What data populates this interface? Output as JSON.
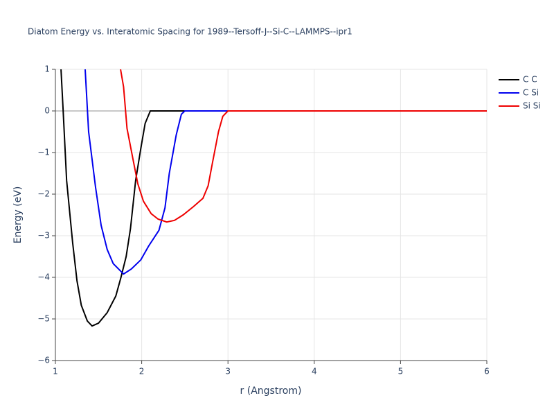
{
  "chart_data": {
    "type": "line",
    "title": "Diatom Energy vs. Interatomic Spacing for 1989--Tersoff-J--Si-C--LAMMPS--ipr1",
    "x_label": "r (Angstrom)",
    "y_label": "Energy (eV)",
    "xlim": [
      1,
      6
    ],
    "xticks": [
      1,
      2,
      3,
      4,
      5,
      6
    ],
    "ylim": [
      -6,
      1
    ],
    "yticks": [
      {
        "value": 1,
        "label": "1"
      },
      {
        "value": 0,
        "label": "0"
      },
      {
        "value": -1,
        "label": "−1"
      },
      {
        "value": -2,
        "label": "−2"
      },
      {
        "value": -3,
        "label": "−3"
      },
      {
        "value": -4,
        "label": "−4"
      },
      {
        "value": -5,
        "label": "−5"
      },
      {
        "value": -6,
        "label": "−6"
      }
    ],
    "grid": true,
    "legend": "right",
    "series": [
      {
        "name": "C C",
        "color": "#000000",
        "x": [
          1.065,
          1.09,
          1.13,
          1.2,
          1.25,
          1.3,
          1.37,
          1.425,
          1.5,
          1.6,
          1.7,
          1.76,
          1.82,
          1.87,
          1.93,
          1.99,
          2.04,
          2.1,
          6
        ],
        "values": [
          1,
          0,
          -1.67,
          -3.17,
          -4.08,
          -4.67,
          -5.05,
          -5.17,
          -5.1,
          -4.85,
          -4.45,
          -4.0,
          -3.5,
          -2.83,
          -1.67,
          -0.9,
          -0.3,
          0,
          0
        ]
      },
      {
        "name": "C Si",
        "color": "#0000ee",
        "x": [
          1.345,
          1.385,
          1.465,
          1.53,
          1.6,
          1.67,
          1.79,
          1.88,
          1.99,
          2.08,
          2.2,
          2.27,
          2.32,
          2.4,
          2.46,
          2.5,
          6
        ],
        "values": [
          1,
          -0.5,
          -1.83,
          -2.75,
          -3.33,
          -3.67,
          -3.92,
          -3.8,
          -3.58,
          -3.25,
          -2.87,
          -2.33,
          -1.5,
          -0.58,
          -0.08,
          0,
          0
        ]
      },
      {
        "name": "Si Si",
        "color": "#ee0000",
        "x": [
          1.755,
          1.79,
          1.83,
          1.9,
          1.955,
          2.02,
          2.11,
          2.19,
          2.29,
          2.38,
          2.48,
          2.6,
          2.71,
          2.77,
          2.82,
          2.89,
          2.94,
          3.0,
          6
        ],
        "values": [
          1,
          0.58,
          -0.42,
          -1.17,
          -1.75,
          -2.17,
          -2.47,
          -2.6,
          -2.67,
          -2.63,
          -2.5,
          -2.3,
          -2.1,
          -1.8,
          -1.25,
          -0.5,
          -0.13,
          0,
          0
        ]
      }
    ]
  }
}
